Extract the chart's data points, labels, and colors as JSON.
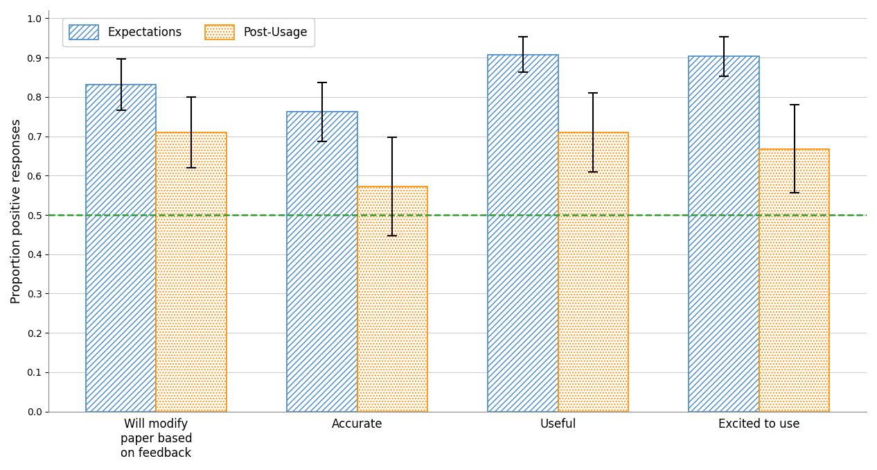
{
  "categories": [
    "Will modify\npaper based\non feedback",
    "Accurate",
    "Useful",
    "Excited to use"
  ],
  "expectations_values": [
    0.831,
    0.762,
    0.908,
    0.903
  ],
  "postusage_values": [
    0.71,
    0.572,
    0.71,
    0.668
  ],
  "expectations_yerr": [
    0.065,
    0.075,
    0.045,
    0.05
  ],
  "postusage_yerr": [
    0.09,
    0.125,
    0.1,
    0.112
  ],
  "bar_width": 0.35,
  "ylabel": "Proportion positive responses",
  "ylim": [
    0.0,
    1.02
  ],
  "yticks": [
    0.0,
    0.1,
    0.2,
    0.3,
    0.4,
    0.5,
    0.6,
    0.7,
    0.8,
    0.9,
    1.0
  ],
  "hline_y": 0.5,
  "hline_color": "#2ca02c",
  "hline_style": "--",
  "expectations_facecolor": "white",
  "expectations_edgecolor": "#4488cc",
  "postusage_facecolor": "white",
  "postusage_edgecolor": "#ff8c00",
  "postusage_dotcolor": "#ff8c00",
  "background_color": "white",
  "grid_color": "#cccccc",
  "legend_expectations": "Expectations",
  "legend_postusage": "Post-Usage",
  "errorbar_color": "black",
  "errorbar_capsize": 5,
  "errorbar_linewidth": 1.5,
  "figsize": [
    12.66,
    6.78
  ],
  "dpi": 100
}
